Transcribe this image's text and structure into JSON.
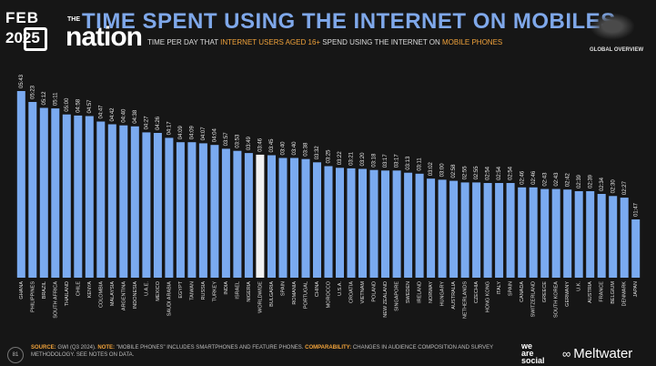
{
  "header": {
    "badge_month": "FEB",
    "badge_year": "2025",
    "logo_small": "THE",
    "logo_text": "nation",
    "title": "TIME SPENT USING THE INTERNET ON MOBILES",
    "subtitle_a": "TIME PER DAY THAT ",
    "subtitle_b": "INTERNET USERS AGED 16+",
    "subtitle_c": " SPEND USING THE INTERNET ON ",
    "subtitle_d": "MOBILE PHONES",
    "overview": "GLOBAL OVERVIEW"
  },
  "footer": {
    "page": "81",
    "source_label": "SOURCE:",
    "source_text": " GWI (Q3 2024).",
    "note_label": "NOTE:",
    "note_text": " \"MOBILE PHONES\" INCLUDES SMARTPHONES AND FEATURE PHONES.",
    "comp_label": "COMPARABILITY:",
    "comp_text": " CHANGES IN AUDIENCE COMPOSITION AND SURVEY METHODOLOGY. SEE NOTES ON DATA.",
    "brand_a": "we",
    "brand_b": "are",
    "brand_c": "social",
    "brand_icon": "meltwater-icon",
    "brand_d": "Meltwater"
  },
  "colors": {
    "bar": "#7aaaf0",
    "highlight": "#f2f2f2",
    "title": "#7fa8ea",
    "accent": "#f0a23a"
  },
  "chart_data": {
    "type": "bar",
    "highlight_category": "WORLDWIDE",
    "categories": [
      "GHANA",
      "PHILIPPINES",
      "BRAZIL",
      "SOUTH AFRICA",
      "THAILAND",
      "CHILE",
      "KENYA",
      "COLOMBIA",
      "MALAYSIA",
      "ARGENTINA",
      "INDONESIA",
      "U.A.E.",
      "MEXICO",
      "SAUDI ARABIA",
      "EGYPT",
      "TAIWAN",
      "RUSSIA",
      "TURKEY",
      "INDIA",
      "ISRAEL",
      "NIGERIA",
      "WORLDWIDE",
      "BULGARIA",
      "SPAIN",
      "ROMANIA",
      "PORTUGAL",
      "CHINA",
      "MOROCCO",
      "U.S.A.",
      "CROATIA",
      "VIETNAM",
      "POLAND",
      "NEW ZEALAND",
      "SINGAPORE",
      "SWEDEN",
      "IRELAND",
      "NORWAY",
      "HUNGARY",
      "AUSTRALIA",
      "NETHERLANDS",
      "CZECHIA",
      "HONG KONG",
      "ITALY",
      "SPAIN",
      "CANADA",
      "SWITZERLAND",
      "GREECE",
      "SOUTH KOREA",
      "GERMANY",
      "U.K.",
      "AUSTRIA",
      "FRANCE",
      "BELGIUM",
      "DENMARK",
      "JAPAN"
    ],
    "labels": [
      "05:43",
      "05:23",
      "05:12",
      "05:11",
      "05:00",
      "04:58",
      "04:57",
      "04:47",
      "04:42",
      "04:40",
      "04:38",
      "04:27",
      "04:26",
      "04:17",
      "04:09",
      "04:09",
      "04:07",
      "04:04",
      "03:57",
      "03:53",
      "03:49",
      "03:46",
      "03:45",
      "03:40",
      "03:40",
      "03:38",
      "03:32",
      "03:25",
      "03:22",
      "03:21",
      "03:20",
      "03:18",
      "03:17",
      "03:17",
      "03:13",
      "03:11",
      "03:02",
      "03:00",
      "02:58",
      "02:55",
      "02:55",
      "02:54",
      "02:54",
      "02:54",
      "02:46",
      "02:46",
      "02:43",
      "02:43",
      "02:42",
      "02:39",
      "02:39",
      "02:34",
      "02:30",
      "02:27",
      "01:47"
    ],
    "values": [
      343,
      323,
      312,
      311,
      300,
      298,
      297,
      287,
      282,
      280,
      278,
      267,
      266,
      257,
      249,
      249,
      247,
      244,
      237,
      233,
      229,
      226,
      225,
      220,
      220,
      218,
      212,
      205,
      202,
      201,
      200,
      198,
      197,
      197,
      193,
      191,
      182,
      180,
      178,
      175,
      175,
      174,
      174,
      174,
      166,
      166,
      163,
      163,
      162,
      159,
      159,
      154,
      150,
      147,
      107
    ],
    "ylim": [
      0,
      360
    ]
  }
}
